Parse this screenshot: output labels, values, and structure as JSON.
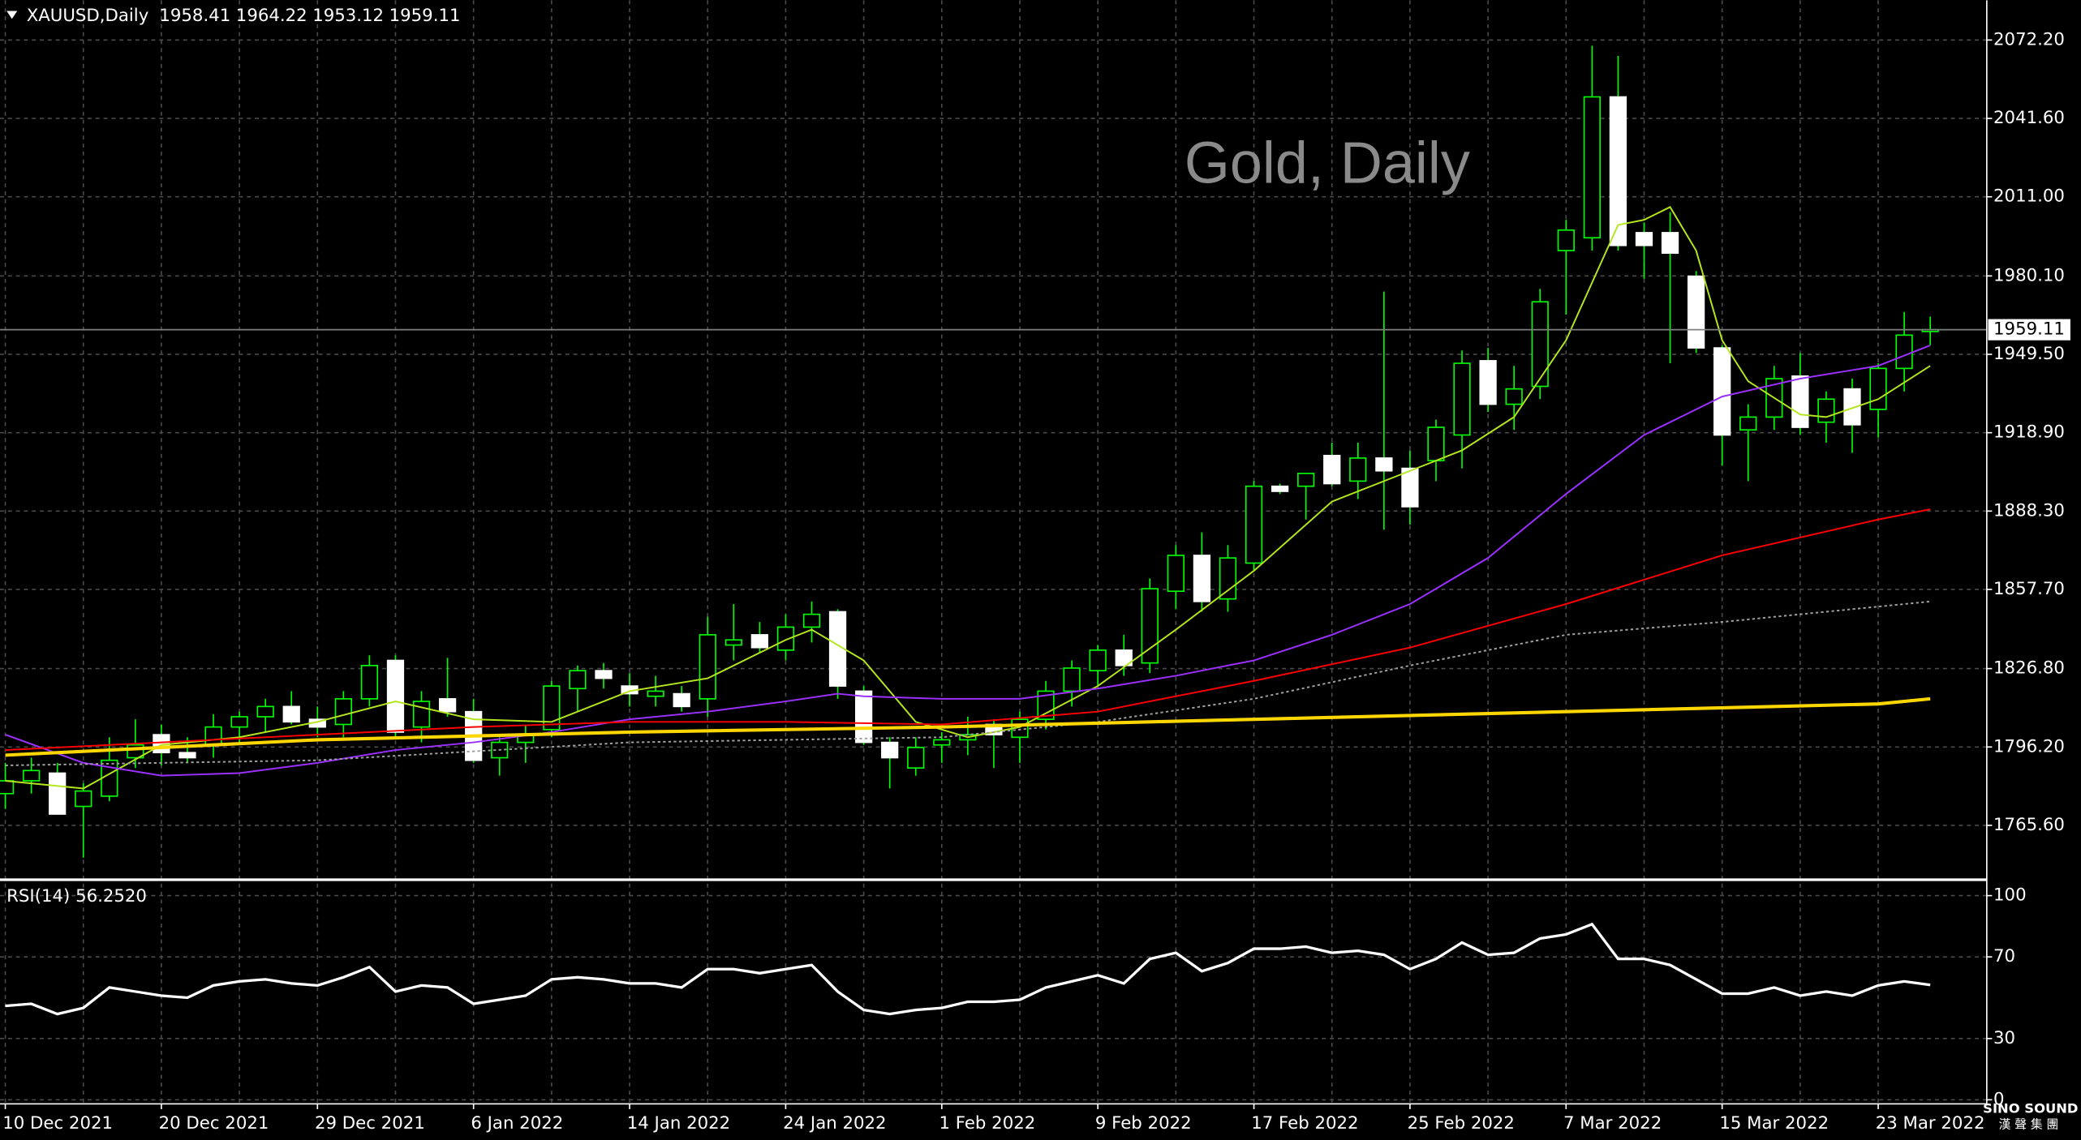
{
  "chart_data": [
    {
      "type": "candlestick",
      "title": "XAUUSD,Daily",
      "watermark": "Gold, Daily",
      "categories": [
        "10 Dec 2021",
        null,
        null,
        null,
        null,
        null,
        "20 Dec 2021",
        null,
        null,
        null,
        null,
        null,
        "29 Dec 2021",
        null,
        null,
        null,
        null,
        null,
        "6 Jan 2022",
        null,
        null,
        null,
        null,
        null,
        "14 Jan 2022",
        null,
        null,
        null,
        null,
        null,
        "24 Jan 2022",
        null,
        null,
        null,
        null,
        null,
        "1 Feb 2022",
        null,
        null,
        null,
        null,
        null,
        "9 Feb 2022",
        null,
        null,
        null,
        null,
        null,
        "17 Feb 2022",
        null,
        null,
        null,
        null,
        null,
        "25 Feb 2022",
        null,
        null,
        null,
        null,
        null,
        "7 Mar 2022",
        null,
        null,
        null,
        null,
        null,
        "15 Mar 2022",
        null,
        null,
        null,
        null,
        null,
        "23 Mar 2022",
        null,
        null
      ],
      "open": [
        1778,
        1783,
        1786,
        1773,
        1777,
        1792,
        1801,
        1794,
        1797,
        1804,
        1808,
        1812,
        1807,
        1805,
        1815,
        1830,
        1804,
        1815,
        1810,
        1792,
        1798,
        1803,
        1819,
        1826,
        1820,
        1816,
        1817,
        1815,
        1836,
        1840,
        1834,
        1843,
        1849,
        1818,
        1798,
        1788,
        1797,
        1799,
        1805,
        1800,
        1807,
        1818,
        1826,
        1834,
        1829,
        1857,
        1871,
        1854,
        1868,
        1898,
        1898,
        1910,
        1900,
        1909,
        1905,
        1908,
        1918,
        1947,
        1930,
        1937,
        1990,
        1995,
        2050,
        1997,
        1997,
        1980,
        1952,
        1920,
        1925,
        1941,
        1923,
        1936,
        1928,
        1944,
        1958.41
      ],
      "high": [
        1790,
        1792,
        1790,
        1782,
        1800,
        1807,
        1805,
        1800,
        1809,
        1810,
        1815,
        1818,
        1812,
        1818,
        1832,
        1832,
        1818,
        1831,
        1815,
        1800,
        1805,
        1822,
        1828,
        1829,
        1825,
        1824,
        1820,
        1847,
        1852,
        1845,
        1848,
        1853,
        1850,
        1820,
        1800,
        1800,
        1802,
        1808,
        1807,
        1810,
        1822,
        1830,
        1836,
        1840,
        1862,
        1875,
        1880,
        1875,
        1900,
        1899,
        1903,
        1915,
        1915,
        1974,
        1912,
        1924,
        1951,
        1952,
        1945,
        1975,
        2002,
        2070,
        2066,
        2001,
        2005,
        1982,
        1953,
        1930,
        1945,
        1950,
        1935,
        1940,
        1946,
        1966,
        1964.22
      ],
      "low": [
        1772,
        1778,
        1770,
        1753,
        1775,
        1788,
        1789,
        1790,
        1792,
        1798,
        1802,
        1805,
        1800,
        1800,
        1812,
        1800,
        1798,
        1808,
        1790,
        1785,
        1790,
        1800,
        1810,
        1819,
        1812,
        1812,
        1810,
        1808,
        1830,
        1833,
        1830,
        1837,
        1815,
        1797,
        1780,
        1785,
        1790,
        1793,
        1788,
        1790,
        1803,
        1812,
        1820,
        1824,
        1825,
        1850,
        1849,
        1849,
        1865,
        1895,
        1885,
        1898,
        1893,
        1881,
        1883,
        1900,
        1905,
        1927,
        1920,
        1932,
        1965,
        1990,
        1990,
        1979,
        1946,
        1950,
        1906,
        1900,
        1920,
        1918,
        1915,
        1911,
        1917,
        1935,
        1953.12
      ],
      "close": [
        1783,
        1787,
        1770,
        1779,
        1791,
        1797,
        1794,
        1792,
        1804,
        1808,
        1812,
        1806,
        1804,
        1815,
        1828,
        1802,
        1814,
        1810,
        1791,
        1798,
        1801,
        1820,
        1826,
        1823,
        1817,
        1818,
        1812,
        1840,
        1838,
        1835,
        1843,
        1848,
        1820,
        1798,
        1792,
        1796,
        1799,
        1801,
        1801,
        1807,
        1818,
        1827,
        1834,
        1828,
        1858,
        1871,
        1853,
        1870,
        1898,
        1896,
        1903,
        1899,
        1909,
        1904,
        1890,
        1921,
        1946,
        1930,
        1936,
        1970,
        1998,
        2050,
        1992,
        1992,
        1989,
        1952,
        1918,
        1925,
        1940,
        1921,
        1932,
        1922,
        1944,
        1957,
        1959.11
      ],
      "up_color": "#000000",
      "down_color": "#ffffff",
      "wick_color": "#00ff00",
      "series": [
        {
          "color": "#b4e61e",
          "x": [
            0,
            3,
            6,
            9,
            12,
            15,
            18,
            21,
            24,
            27,
            30,
            31,
            33,
            35,
            37,
            39,
            42,
            45,
            48,
            51,
            54,
            56,
            58,
            60,
            62,
            63,
            64,
            65,
            66,
            67,
            69,
            70,
            72,
            74
          ],
          "values": [
            1783,
            1780,
            1797,
            1800,
            1806,
            1814,
            1807,
            1806,
            1818,
            1823,
            1838,
            1842,
            1830,
            1806,
            1800,
            1804,
            1820,
            1842,
            1865,
            1892,
            1904,
            1912,
            1925,
            1955,
            2000,
            2002,
            2007,
            1990,
            1955,
            1939,
            1926,
            1925,
            1932,
            1945
          ]
        },
        {
          "color": "#9b30ff",
          "x": [
            0,
            3,
            6,
            9,
            12,
            15,
            18,
            21,
            24,
            27,
            30,
            32,
            33,
            36,
            39,
            42,
            45,
            48,
            51,
            54,
            57,
            60,
            63,
            66,
            69,
            72,
            74
          ],
          "values": [
            1801,
            1790,
            1785,
            1786,
            1790,
            1795,
            1798,
            1802,
            1807,
            1810,
            1814,
            1817,
            1816,
            1815,
            1815,
            1819,
            1824,
            1830,
            1840,
            1852,
            1870,
            1895,
            1918,
            1933,
            1940,
            1945,
            1953
          ]
        },
        {
          "color": "#ff0000",
          "x": [
            0,
            6,
            12,
            18,
            24,
            30,
            36,
            42,
            48,
            54,
            60,
            66,
            72,
            74
          ],
          "values": [
            1795,
            1798,
            1801,
            1804,
            1806,
            1806,
            1805,
            1810,
            1822,
            1835,
            1852,
            1871,
            1885,
            1889
          ]
        },
        {
          "color": "#a0a0a0",
          "dashed": true,
          "x": [
            0,
            12,
            24,
            36,
            42,
            48,
            54,
            60,
            66,
            72,
            74
          ],
          "values": [
            1789,
            1791,
            1798,
            1800,
            1806,
            1815,
            1828,
            1840,
            1845,
            1851,
            1853
          ]
        },
        {
          "color": "#ffd700",
          "x": [
            0,
            12,
            24,
            36,
            48,
            60,
            72,
            74
          ],
          "values": [
            1793,
            1799,
            1802,
            1804,
            1807,
            1810,
            1813,
            1815
          ]
        }
      ],
      "ylim": [
        1744.9,
        2087.7
      ],
      "yticks": [
        {
          "value": 2072.2,
          "label": "2072.20"
        },
        {
          "value": 2041.6,
          "label": "2041.60"
        },
        {
          "value": 2011.0,
          "label": "2011.00"
        },
        {
          "value": 1980.1,
          "label": "1980.10"
        },
        {
          "value": 1949.5,
          "label": "1949.50"
        },
        {
          "value": 1918.9,
          "label": "1918.90"
        },
        {
          "value": 1888.3,
          "label": "1888.30"
        },
        {
          "value": 1857.7,
          "label": "1857.70"
        },
        {
          "value": 1826.8,
          "label": "1826.80"
        },
        {
          "value": 1796.2,
          "label": "1796.20"
        },
        {
          "value": 1765.6,
          "label": "1765.60"
        }
      ],
      "grid": true
    },
    {
      "type": "line",
      "title": "RSI(14) 56.2520",
      "color": "#ffffff",
      "values": [
        46,
        47,
        42,
        45,
        55,
        53,
        51,
        50,
        56,
        58,
        59,
        57,
        56,
        60,
        65,
        53,
        56,
        55,
        47,
        49,
        51,
        59,
        60,
        59,
        57,
        57,
        55,
        64,
        64,
        62,
        64,
        66,
        53,
        44,
        42,
        44,
        45,
        48,
        48,
        49,
        55,
        58,
        61,
        57,
        69,
        72,
        63,
        67,
        74,
        74,
        75,
        72,
        73,
        71,
        64,
        69,
        77,
        71,
        72,
        79,
        81,
        86,
        69,
        69,
        66,
        59,
        52,
        52,
        55,
        51,
        53,
        51,
        56,
        58,
        56.252
      ],
      "ylim": [
        -2,
        106.5
      ],
      "yticks": [
        100,
        70,
        30,
        0
      ],
      "grid": true
    }
  ],
  "logo": {
    "name": "SINO SOUND",
    "subtitle": "漢聲集團"
  }
}
